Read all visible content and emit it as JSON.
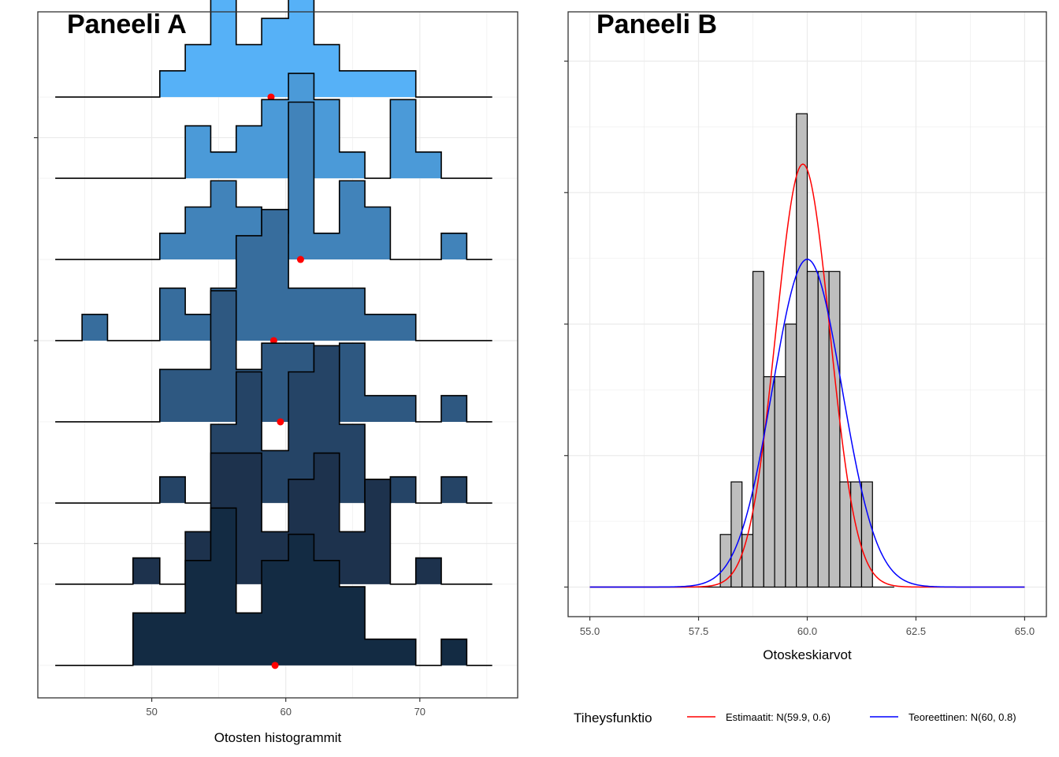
{
  "colors": {
    "grid": "#ebebeb",
    "axis": "#333333",
    "outline": "#000000",
    "mean_marker": "#ff0000",
    "hist_fill": "#bebebe",
    "ridge_fills": [
      "#56b1f7",
      "#4b9ad8",
      "#4183ba",
      "#376d9d",
      "#2e5881",
      "#254466",
      "#1d324d",
      "#132b43"
    ]
  },
  "chart_data": [
    {
      "id": "panel_a",
      "type": "ridgeline-histogram",
      "title": "Paneeli A",
      "xlabel": "Otosten histogrammit",
      "ylabel": "",
      "xlim": [
        41.5,
        77.3
      ],
      "xticks": [
        50,
        60,
        70
      ],
      "xticklabels": [
        "50",
        "60",
        "70"
      ],
      "minor_xticks": [
        45,
        55,
        65,
        75
      ],
      "ylim": [
        0.6,
        9.05
      ],
      "yticks": [
        2.5,
        5,
        7.5
      ],
      "minor_yticks": [
        1,
        2,
        3,
        4,
        5,
        6,
        7,
        8
      ],
      "grid": true,
      "bin_edges": [
        44.8,
        46.7,
        48.6,
        50.6,
        52.5,
        54.4,
        56.3,
        58.2,
        60.2,
        62.1,
        64.0,
        65.9,
        67.8,
        69.7,
        71.6,
        73.5
      ],
      "baseline_range": [
        42.8,
        75.4
      ],
      "unit_height": 0.323,
      "series": [
        {
          "baseline": 8,
          "counts": [
            0,
            0,
            0,
            1,
            2,
            4,
            2,
            3,
            4,
            2,
            1,
            1,
            1,
            0,
            0
          ],
          "mean": 58.9
        },
        {
          "baseline": 7,
          "counts": [
            0,
            0,
            0,
            0,
            2,
            1,
            2,
            3,
            4,
            3,
            1,
            0,
            3,
            1,
            0
          ],
          "mean": 61.2
        },
        {
          "baseline": 6,
          "counts": [
            0,
            0,
            0,
            1,
            2,
            3,
            2,
            1,
            6,
            1,
            3,
            2,
            0,
            0,
            1
          ],
          "mean": 61.1
        },
        {
          "baseline": 5,
          "counts": [
            1,
            0,
            0,
            2,
            1,
            2,
            4,
            5,
            2,
            2,
            2,
            1,
            1,
            0,
            0
          ],
          "mean": 59.1
        },
        {
          "baseline": 4,
          "counts": [
            0,
            0,
            0,
            2,
            2,
            5,
            2,
            3,
            3,
            2,
            3,
            1,
            1,
            0,
            1
          ],
          "mean": 59.6
        },
        {
          "baseline": 3,
          "counts": [
            0,
            0,
            0,
            1,
            0,
            3,
            5,
            2,
            5,
            6,
            3,
            0,
            1,
            0,
            1
          ],
          "mean": 60.6
        },
        {
          "baseline": 2,
          "counts": [
            0,
            0,
            1,
            0,
            2,
            5,
            5,
            2,
            4,
            5,
            2,
            4,
            0,
            1,
            0
          ],
          "mean": 59.9
        },
        {
          "baseline": 1,
          "counts": [
            0,
            0,
            2,
            2,
            4,
            6,
            2,
            4,
            5,
            4,
            3,
            1,
            1,
            0,
            1
          ],
          "mean": 59.2
        }
      ]
    },
    {
      "id": "panel_b",
      "type": "histogram-with-density",
      "title": "Paneeli B",
      "xlabel": "Otoskeskiarvot",
      "ylabel": "",
      "xlim": [
        54.5,
        65.5
      ],
      "xticks": [
        55.0,
        57.5,
        60.0,
        62.5,
        65.0
      ],
      "xticklabels": [
        "55.0",
        "57.5",
        "60.0",
        "62.5",
        "65.0"
      ],
      "minor_xticks": [
        56.25,
        58.75,
        61.25,
        63.75
      ],
      "ylim": [
        -0.045,
        0.875
      ],
      "yticks": [
        0.2,
        0.4,
        0.6,
        0.8
      ],
      "minor_yticks": [
        0.1,
        0.3,
        0.5,
        0.7
      ],
      "grid": true,
      "bin_edges": [
        58.0,
        58.25,
        58.5,
        58.75,
        59.0,
        59.25,
        59.5,
        59.75,
        60.0,
        60.25,
        60.5,
        60.75,
        61.0,
        61.25,
        61.5
      ],
      "bin_heights": [
        0.08,
        0.16,
        0.08,
        0.48,
        0.32,
        0.32,
        0.4,
        0.72,
        0.48,
        0.48,
        0.48,
        0.16,
        0.16,
        0.16
      ],
      "baseline_range": [
        55.0,
        62.0
      ],
      "density_range": [
        55.0,
        65.0
      ],
      "series": [
        {
          "name": "Estimaatit: N(59.9, 0.6)",
          "mean": 59.9,
          "sd": 0.62,
          "color": "#ff0000"
        },
        {
          "name": "Teoreettinen: N(60, 0.8)",
          "mean": 60.0,
          "sd": 0.8,
          "color": "#0000ff"
        }
      ],
      "legend": {
        "title": "Tiheysfunktio",
        "position": "bottom"
      }
    }
  ]
}
